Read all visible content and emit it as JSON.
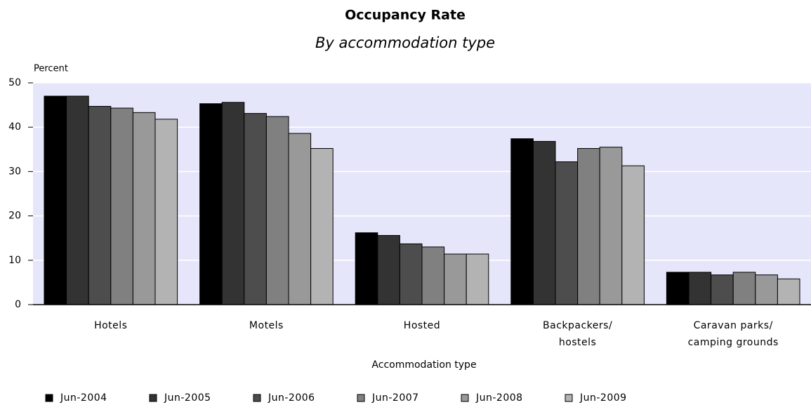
{
  "chart_data": {
    "type": "bar",
    "title": "Occupancy Rate",
    "subtitle": "By accommodation type",
    "y_label": "Percent",
    "x_label": "Accommodation type",
    "categories": [
      "Hotels",
      "Motels",
      "Hosted",
      "Backpackers/\nhostels",
      "Caravan parks/\ncamping grounds"
    ],
    "series": [
      {
        "name": "Jun-2004",
        "color": "#000000",
        "values": [
          47.0,
          45.3,
          16.2,
          37.4,
          7.3
        ]
      },
      {
        "name": "Jun-2005",
        "color": "#333333",
        "values": [
          47.0,
          45.6,
          15.6,
          36.8,
          7.3
        ]
      },
      {
        "name": "Jun-2006",
        "color": "#4d4d4d",
        "values": [
          44.7,
          43.1,
          13.7,
          32.2,
          6.7
        ]
      },
      {
        "name": "Jun-2007",
        "color": "#808080",
        "values": [
          44.3,
          42.4,
          13.0,
          35.2,
          7.3
        ]
      },
      {
        "name": "Jun-2008",
        "color": "#999999",
        "values": [
          43.3,
          38.6,
          11.4,
          35.5,
          6.7
        ]
      },
      {
        "name": "Jun-2009",
        "color": "#b3b3b3",
        "values": [
          41.8,
          35.2,
          11.4,
          31.3,
          5.8
        ]
      }
    ],
    "ylim": [
      0,
      50
    ],
    "yticks": [
      0,
      10,
      20,
      30,
      40,
      50
    ],
    "grid": true,
    "plot_background": "#e6e6fa",
    "legend": "bottom"
  }
}
